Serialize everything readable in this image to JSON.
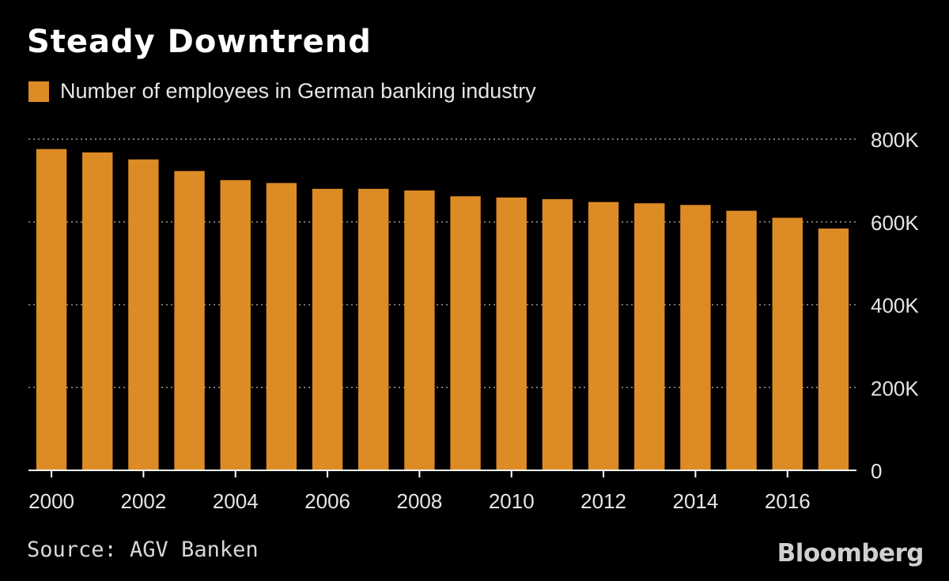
{
  "header": {
    "title": "Steady Downtrend"
  },
  "legend": {
    "label": "Number of employees in German banking industry",
    "color": "#dd8b25"
  },
  "footer": {
    "source": "Source: AGV Banken",
    "brand": "Bloomberg"
  },
  "chart_data": {
    "type": "bar",
    "categories": [
      "2000",
      "2001",
      "2002",
      "2003",
      "2004",
      "2005",
      "2006",
      "2007",
      "2008",
      "2009",
      "2010",
      "2011",
      "2012",
      "2013",
      "2014",
      "2015",
      "2016",
      "2017"
    ],
    "series": [
      {
        "name": "Number of employees in German banking industry",
        "values": [
          776000,
          768000,
          751000,
          723000,
          701000,
          694000,
          680000,
          680000,
          676000,
          662000,
          659000,
          655000,
          648000,
          645000,
          641000,
          627000,
          610000,
          584000
        ]
      }
    ],
    "x_tick_labels": [
      "2000",
      "2002",
      "2004",
      "2006",
      "2008",
      "2010",
      "2012",
      "2014",
      "2016"
    ],
    "y_ticks": [
      0,
      200000,
      400000,
      600000,
      800000
    ],
    "y_tick_labels": [
      "0",
      "200K",
      "400K",
      "600K",
      "800K"
    ],
    "ylim": [
      0,
      800000
    ],
    "y_axis_side": "right",
    "grid": true,
    "legend_position": "top-left",
    "bar_color": "#dd8b25",
    "background": "#000000"
  }
}
